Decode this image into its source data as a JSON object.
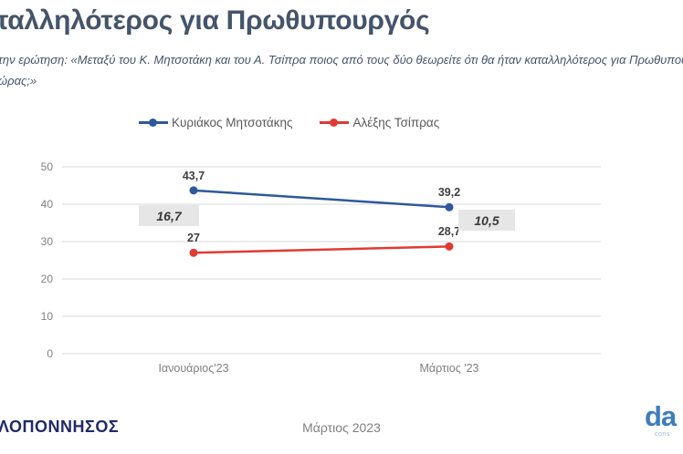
{
  "header": {
    "title": "ταλληλότερος για Πρωθυπουργός",
    "subtitle_line1": "την ερώτηση: «Μεταξύ του Κ. Μητσοτάκη και του Α. Τσίπρα ποιος από τους δύο θεωρείτε ότι θα ήταν καταλληλότερος για Πρωθυπου",
    "subtitle_line2": "ώρας;»"
  },
  "chart_data": {
    "type": "line",
    "categories": [
      "Ιανουάριος'23",
      "Μάρτιος '23"
    ],
    "series": [
      {
        "name": "Κυριάκος Μητσοτάκης",
        "color": "#2E589C",
        "values": [
          43.7,
          39.2
        ],
        "point_labels": [
          "43,7",
          "39,2"
        ]
      },
      {
        "name": "Αλέξης Τσίπρας",
        "color": "#E03A34",
        "values": [
          27,
          28.7
        ],
        "point_labels": [
          "27",
          "28,7"
        ]
      }
    ],
    "yticks": [
      0,
      10,
      20,
      30,
      40,
      50
    ],
    "ylim": [
      0,
      50
    ],
    "grid": true,
    "legend_position": "top",
    "annotations": [
      {
        "label": "16,7"
      },
      {
        "label": "10,5"
      }
    ]
  },
  "footer": {
    "left_logo": "ΛΟΠΟΝΝΗΣΟΣ",
    "center_text": "Μάρτιος 2023",
    "right_logo_main": "da",
    "right_logo_sub": "cons"
  },
  "colors": {
    "title": "#44546A",
    "series_blue": "#2E589C",
    "series_red": "#E03A34",
    "grid": "#D9D9D9",
    "diff_box_bg": "#E7E6E6",
    "footer_navy": "#1F2A68",
    "da_blue": "#3E7DBE"
  }
}
